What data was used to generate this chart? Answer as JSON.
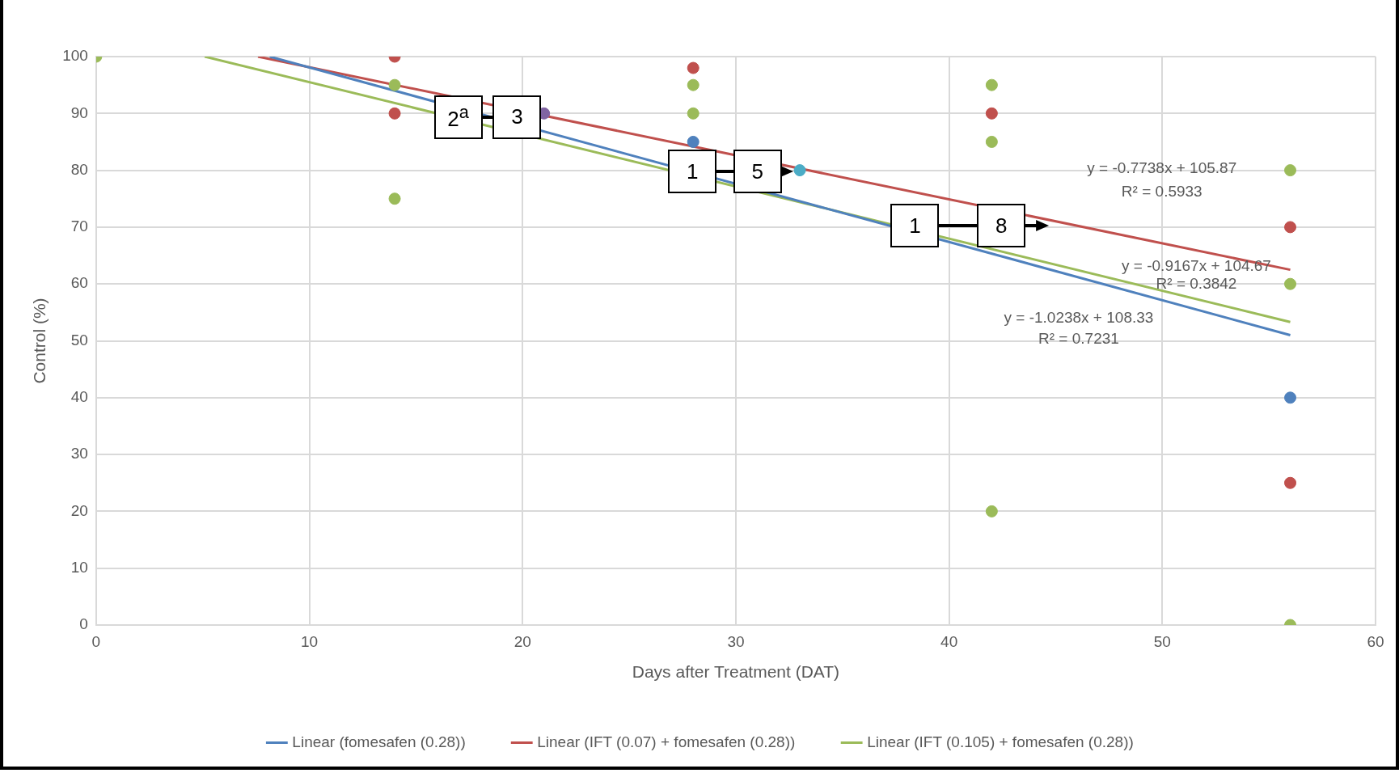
{
  "chart_data": {
    "type": "scatter",
    "xlabel": "Days after Treatment (DAT)",
    "ylabel": "Control (%)",
    "xlim": [
      0,
      60
    ],
    "xticks": [
      0,
      10,
      20,
      30,
      40,
      50,
      60
    ],
    "ylim": [
      0,
      100
    ],
    "yticks": [
      0,
      10,
      20,
      30,
      40,
      50,
      60,
      70,
      80,
      90,
      100
    ],
    "grid": true,
    "legend": "bottom",
    "marker": "circle",
    "series": [
      {
        "color": "#4f81bd",
        "x": [
          28,
          56
        ],
        "values": [
          85,
          40
        ]
      },
      {
        "color": "#c0504d",
        "x": [
          14,
          14,
          28,
          42,
          56,
          56
        ],
        "values": [
          100,
          90,
          98,
          90,
          70,
          25
        ]
      },
      {
        "color": "#9bbb59",
        "x": [
          0,
          14,
          14,
          28,
          28,
          42,
          42,
          42,
          56,
          56,
          56
        ],
        "values": [
          100,
          95,
          75,
          95,
          90,
          95,
          85,
          20,
          80,
          60,
          0
        ]
      },
      {
        "color": "#8064a2",
        "x": [
          21
        ],
        "values": [
          90
        ]
      },
      {
        "color": "#4bacc6",
        "x": [
          33
        ],
        "values": [
          80
        ]
      },
      {
        "type": "line",
        "name": "Linear (fomesafen (0.28))",
        "color": "#4f81bd",
        "x": [
          8.14,
          56
        ],
        "values": [
          100,
          51.0
        ],
        "marker": "none",
        "line_style": "solid"
      },
      {
        "type": "line",
        "name": "Linear (IFT (0.07) + fomesafen (0.28))",
        "color": "#c0504d",
        "x": [
          7.59,
          56
        ],
        "values": [
          100,
          62.5
        ],
        "marker": "none",
        "line_style": "solid"
      },
      {
        "type": "line",
        "name": "Linear (IFT (0.105) + fomesafen (0.28))",
        "color": "#9bbb59",
        "x": [
          5.09,
          56
        ],
        "values": [
          100,
          53.3
        ],
        "marker": "none",
        "line_style": "solid"
      }
    ],
    "annotations": [
      "2$^{a}$",
      "3",
      "1",
      "5",
      "1",
      "8",
      "y = -0.7738x + 105.87",
      "R² = 0.5933",
      "y = -0.9167x + 104.67",
      "R² = 0.3842",
      "y = -1.0238x + 108.33",
      "R² = 0.7231"
    ]
  }
}
